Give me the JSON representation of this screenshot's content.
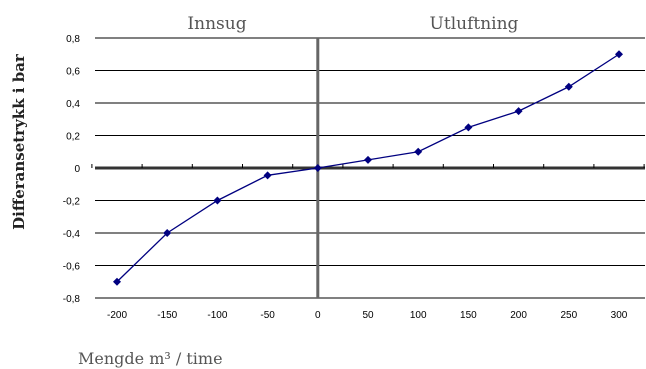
{
  "chart_data": {
    "type": "line",
    "title": "",
    "xlabel": "Mengde m³ / time",
    "ylabel": "Differansetrykk i bar",
    "region_labels": {
      "left": "Innsug",
      "right": "Utluftning"
    },
    "x": [
      -200,
      -150,
      -100,
      -50,
      0,
      50,
      100,
      150,
      200,
      250,
      300
    ],
    "x_tick_labels": [
      "-200",
      "-150",
      "-100",
      "-50",
      "0",
      "50",
      "100",
      "150",
      "200",
      "250",
      "300"
    ],
    "y_ticks": [
      0.8,
      0.6,
      0.4,
      0.2,
      0,
      -0.2,
      -0.4,
      -0.6,
      -0.8
    ],
    "y_tick_labels": [
      "0,8",
      "0,6",
      "0,4",
      "0,2",
      "0",
      "-0,2",
      "-0,4",
      "-0,6",
      "-0,8"
    ],
    "ylim": [
      -0.8,
      0.8
    ],
    "grid": true,
    "series": [
      {
        "values": [
          -0.7,
          -0.4,
          -0.2,
          -0.045,
          0,
          0.05,
          0.1,
          0.25,
          0.35,
          0.5,
          0.7
        ],
        "color": "#000080",
        "marker": "diamond"
      }
    ]
  }
}
